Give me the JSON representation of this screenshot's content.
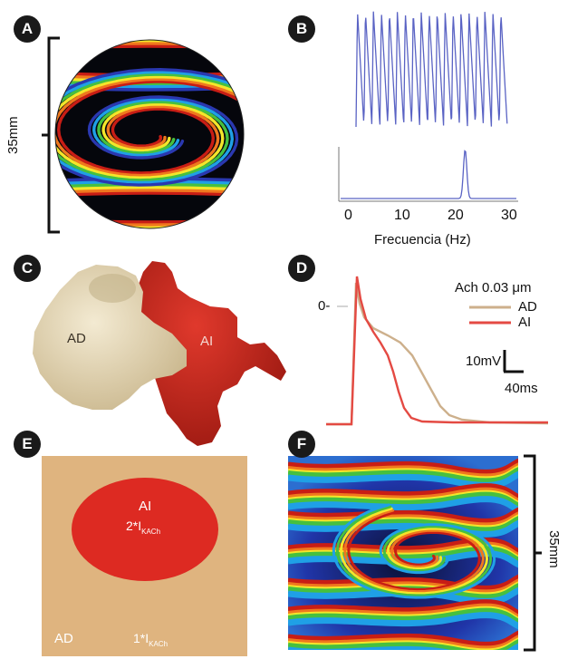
{
  "panels": {
    "a": {
      "badge": "A",
      "scale_label": "35mm"
    },
    "b": {
      "badge": "B",
      "ticks": [
        "0",
        "10",
        "20",
        "30"
      ],
      "xlabel": "Frecuencia (Hz)"
    },
    "c": {
      "badge": "C",
      "label_ra": "AD",
      "label_la": "AI"
    },
    "d": {
      "badge": "D",
      "zero_label": "0-",
      "legend_title": "Ach 0.03 μm",
      "legend_ad": "AD",
      "legend_ai": "AI",
      "scale_v": "10mV",
      "scale_t": "40ms"
    },
    "e": {
      "badge": "E",
      "label_ai": "AI",
      "label_ai_current": "2*I",
      "label_ai_sub": "KACh",
      "label_ad": "AD",
      "label_ad_current": "1*I",
      "label_ad_sub": "KACh"
    },
    "f": {
      "badge": "F",
      "scale_label": "35mm"
    }
  },
  "colors": {
    "ad_tan": "#dfb47f",
    "ai_red": "#dd2a22",
    "trace_blue": "#5a63c4",
    "ad_trace": "#cdb08c"
  }
}
